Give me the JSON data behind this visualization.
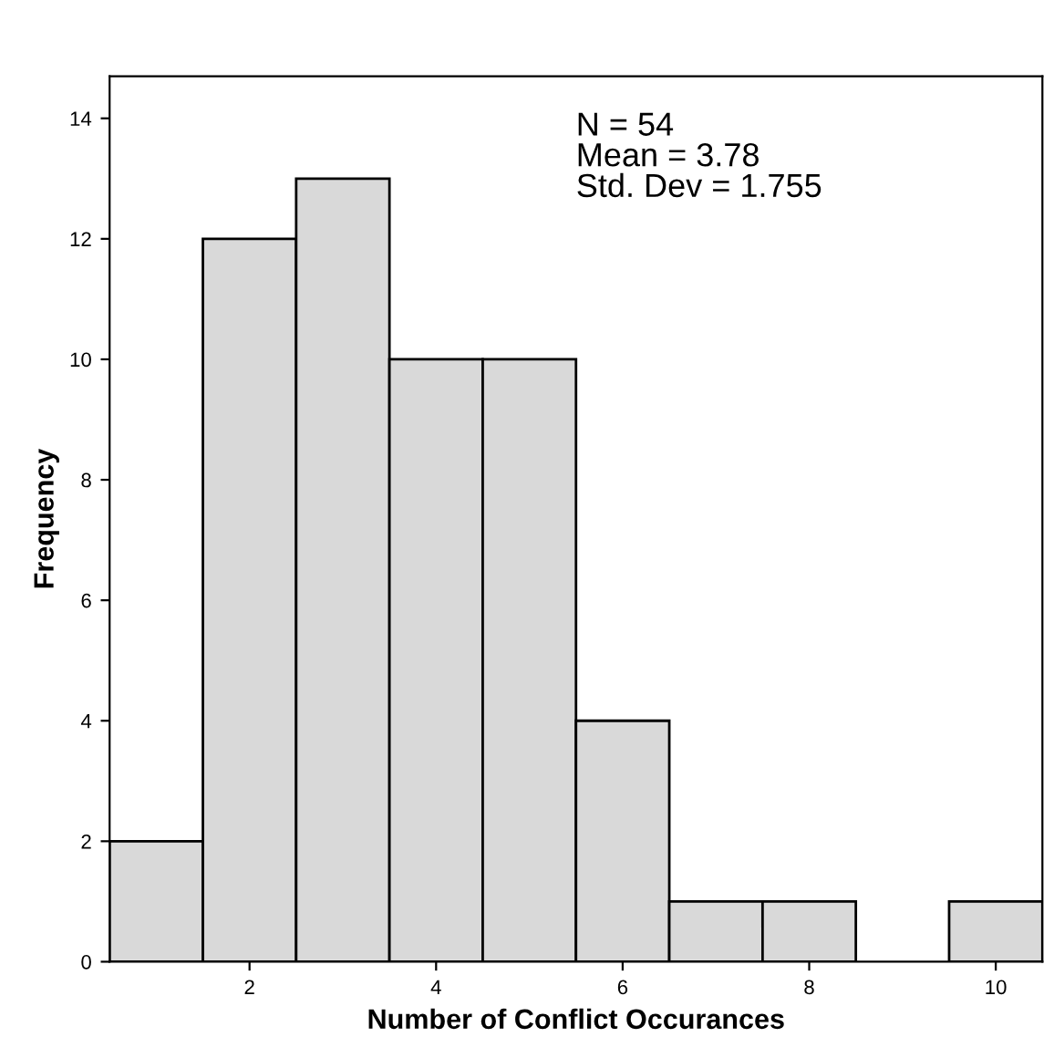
{
  "chart_data": {
    "type": "histogram",
    "xlabel": "Number of Conflict Occurances",
    "ylabel": "Frequency",
    "bins": [
      0.5,
      1.5,
      2.5,
      3.5,
      4.5,
      5.5,
      6.5,
      7.5,
      8.5,
      9.5,
      10.5
    ],
    "values": [
      2,
      12,
      13,
      10,
      10,
      4,
      1,
      1,
      0,
      1
    ],
    "color": "#d9d9d9",
    "xlim": [
      0.5,
      10.5
    ],
    "xticks": [
      2,
      4,
      6,
      8,
      10
    ],
    "ylim": [
      0,
      14.7
    ],
    "yticks": [
      0,
      2,
      4,
      6,
      8,
      10,
      12,
      14
    ],
    "grid": false,
    "annotations": [
      "N = 54\nMean = 3.78\nStd. Dev = 1.755"
    ]
  }
}
